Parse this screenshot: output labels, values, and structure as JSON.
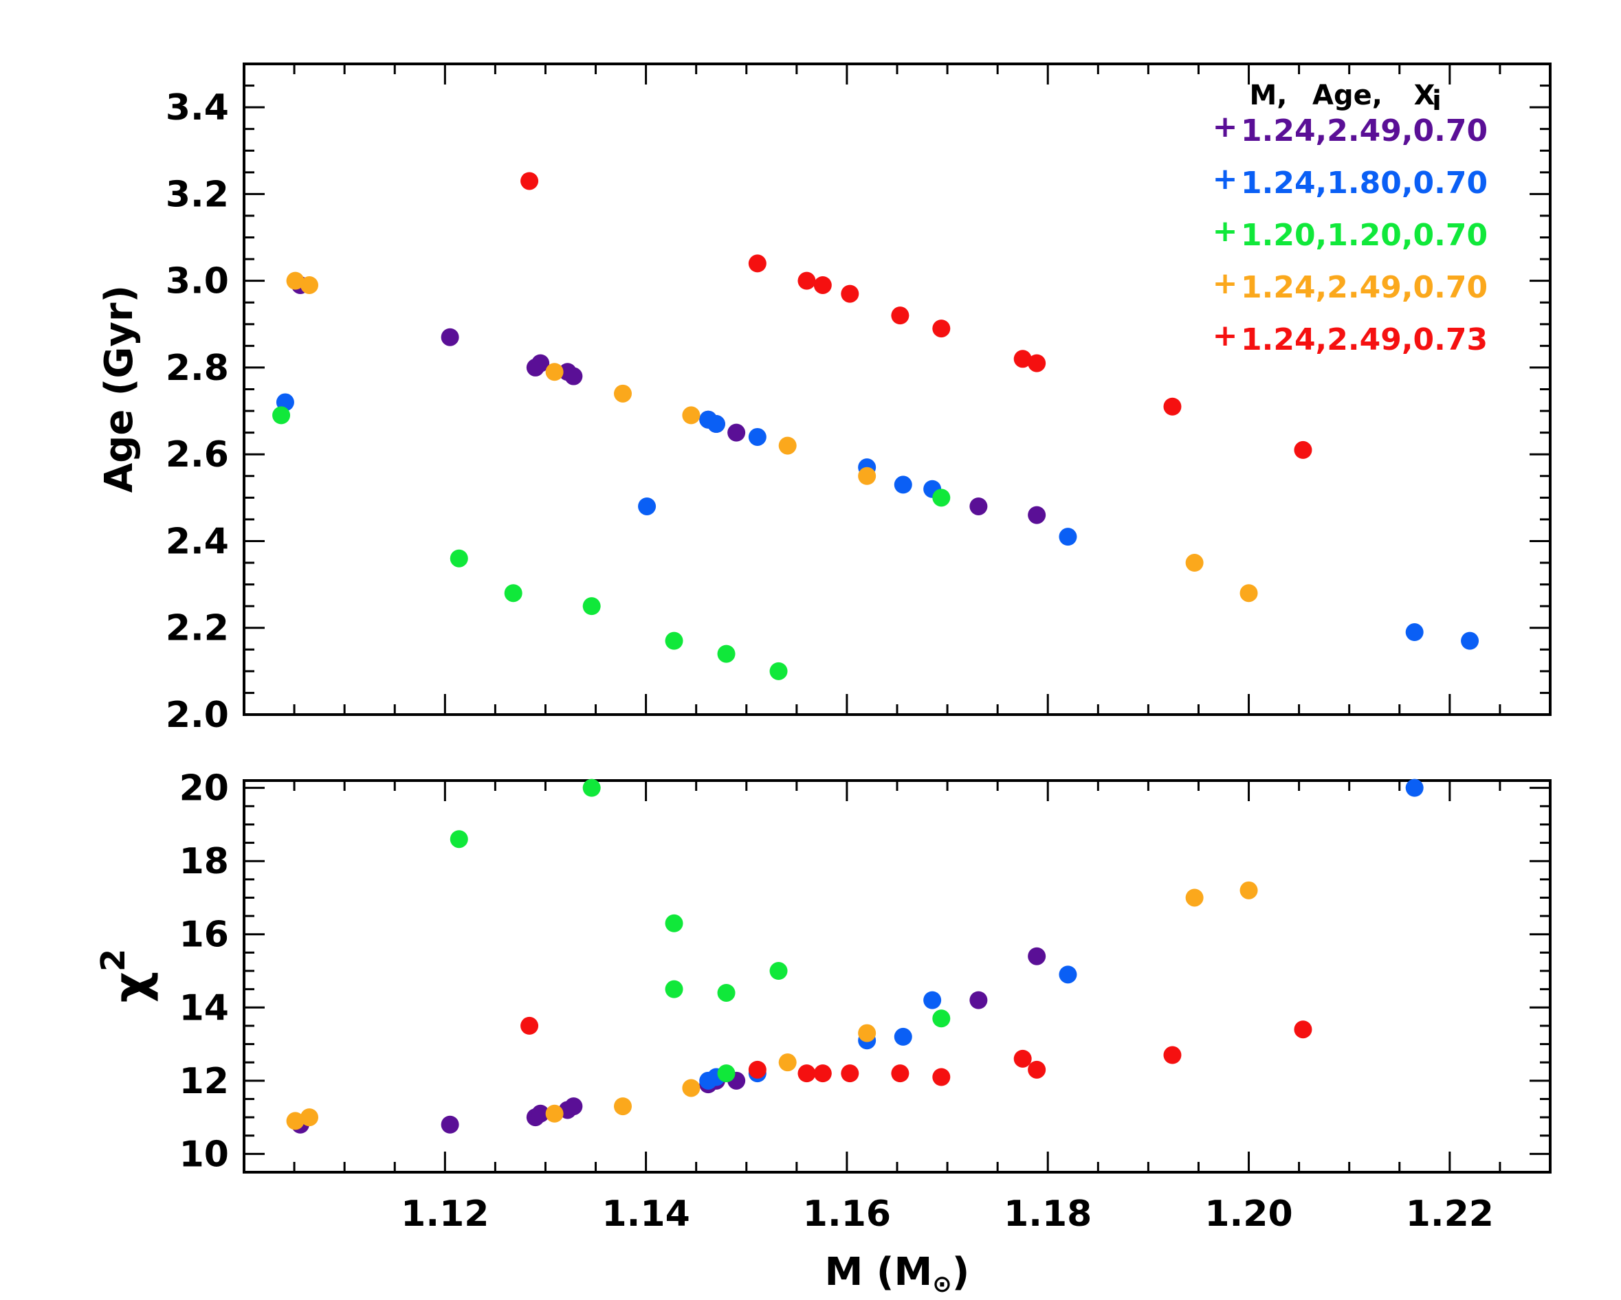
{
  "chart_data": [
    {
      "type": "scatter",
      "panel": "top",
      "ylabel": "Age (Gyr)",
      "xlabel": "",
      "xlim": [
        1.1,
        1.23
      ],
      "ylim": [
        2.0,
        3.5
      ],
      "yticks": [
        "2.0",
        "2.2",
        "2.4",
        "2.6",
        "2.8",
        "3.0",
        "3.2",
        "3.4"
      ],
      "legend": {
        "position": "top-right",
        "header": [
          "M,",
          "Age,",
          "X",
          "i"
        ],
        "entries": [
          {
            "marker": "+",
            "label": "1.24,2.49,0.70",
            "color": "#5a0f96"
          },
          {
            "marker": "+",
            "label": "1.24,1.80,0.70",
            "color": "#0a5ff5"
          },
          {
            "marker": "+",
            "label": "1.20,1.20,0.70",
            "color": "#10e83a"
          },
          {
            "marker": "+",
            "label": "1.24,2.49,0.70",
            "color": "#fba81c"
          },
          {
            "marker": "+",
            "label": "1.24,2.49,0.73",
            "color": "#f51010"
          }
        ]
      },
      "series": [
        {
          "name": "1.24,2.49,0.70 (purple)",
          "color": "#5a0f96",
          "x": [
            1.1056,
            1.1205,
            1.129,
            1.1295,
            1.1322,
            1.1328,
            1.1462,
            1.147,
            1.149,
            1.1731,
            1.1789
          ],
          "y": [
            2.99,
            2.87,
            2.8,
            2.81,
            2.79,
            2.78,
            2.68,
            2.67,
            2.65,
            2.48,
            2.46
          ]
        },
        {
          "name": "1.24,1.80,0.70 (blue)",
          "color": "#0a5ff5",
          "x": [
            1.1041,
            1.1401,
            1.1462,
            1.147,
            1.1511,
            1.162,
            1.1656,
            1.1685,
            1.182,
            1.2165,
            1.222
          ],
          "y": [
            2.72,
            2.48,
            2.68,
            2.67,
            2.64,
            2.57,
            2.53,
            2.52,
            2.41,
            2.19,
            2.17
          ]
        },
        {
          "name": "1.20,1.20,0.70 (green)",
          "color": "#10e83a",
          "x": [
            1.1037,
            1.1214,
            1.1268,
            1.1346,
            1.1428,
            1.148,
            1.1532,
            1.1694
          ],
          "y": [
            2.69,
            2.36,
            2.28,
            2.25,
            2.17,
            2.14,
            2.1,
            2.5
          ]
        },
        {
          "name": "1.24,2.49,0.70 (orange)",
          "color": "#fba81c",
          "x": [
            1.1051,
            1.1065,
            1.1309,
            1.1377,
            1.1445,
            1.1541,
            1.162,
            1.1946,
            1.2
          ],
          "y": [
            3.0,
            2.99,
            2.79,
            2.74,
            2.69,
            2.62,
            2.55,
            2.35,
            2.28
          ]
        },
        {
          "name": "1.24,2.49,0.73 (red)",
          "color": "#f51010",
          "x": [
            1.1284,
            1.1511,
            1.156,
            1.1576,
            1.1603,
            1.1653,
            1.1694,
            1.1775,
            1.1789,
            1.1924,
            1.2054
          ],
          "y": [
            3.23,
            3.04,
            3.0,
            2.99,
            2.97,
            2.92,
            2.89,
            2.82,
            2.81,
            2.71,
            2.61
          ]
        }
      ]
    },
    {
      "type": "scatter",
      "panel": "bottom",
      "ylabel": "χ",
      "ylabel_sup": "2",
      "xlabel_main": "M (M",
      "xlabel_sub": "⊙",
      "xlabel_close": ")",
      "xlim": [
        1.1,
        1.23
      ],
      "ylim": [
        9.5,
        20.2
      ],
      "xticks": [
        "1.12",
        "1.14",
        "1.16",
        "1.18",
        "1.20",
        "1.22"
      ],
      "yticks": [
        "10",
        "12",
        "14",
        "16",
        "18",
        "20"
      ],
      "series": [
        {
          "name": "1.24,2.49,0.70 (purple)",
          "color": "#5a0f96",
          "x": [
            1.1056,
            1.1205,
            1.129,
            1.1295,
            1.1322,
            1.1328,
            1.1462,
            1.147,
            1.149,
            1.1731,
            1.1789
          ],
          "y": [
            10.8,
            10.8,
            11.0,
            11.1,
            11.2,
            11.3,
            11.9,
            12.0,
            12.0,
            14.2,
            15.4
          ]
        },
        {
          "name": "1.24,1.80,0.70 (blue)",
          "color": "#0a5ff5",
          "x": [
            1.1462,
            1.147,
            1.1511,
            1.162,
            1.1656,
            1.1685,
            1.182,
            1.2165
          ],
          "y": [
            12.0,
            12.1,
            12.2,
            13.1,
            13.2,
            14.2,
            14.9,
            20.0
          ]
        },
        {
          "name": "1.20,1.20,0.70 (green)",
          "color": "#10e83a",
          "x": [
            1.1214,
            1.1346,
            1.1428,
            1.1428,
            1.148,
            1.148,
            1.1532,
            1.1694
          ],
          "y": [
            18.6,
            20.0,
            16.3,
            14.5,
            14.4,
            12.2,
            15.0,
            13.7
          ]
        },
        {
          "name": "1.24,2.49,0.70 (orange)",
          "color": "#fba81c",
          "x": [
            1.1051,
            1.1065,
            1.1309,
            1.1377,
            1.1445,
            1.1541,
            1.162,
            1.1946,
            1.2
          ],
          "y": [
            10.9,
            11.0,
            11.1,
            11.3,
            11.8,
            12.5,
            13.3,
            17.0,
            17.2
          ]
        },
        {
          "name": "1.24,2.49,0.73 (red)",
          "color": "#f51010",
          "x": [
            1.1284,
            1.1511,
            1.156,
            1.1576,
            1.1603,
            1.1653,
            1.1694,
            1.1775,
            1.1789,
            1.1924,
            1.2054
          ],
          "y": [
            13.5,
            12.3,
            12.2,
            12.2,
            12.2,
            12.2,
            12.1,
            12.6,
            12.3,
            12.7,
            13.4
          ]
        }
      ]
    }
  ]
}
